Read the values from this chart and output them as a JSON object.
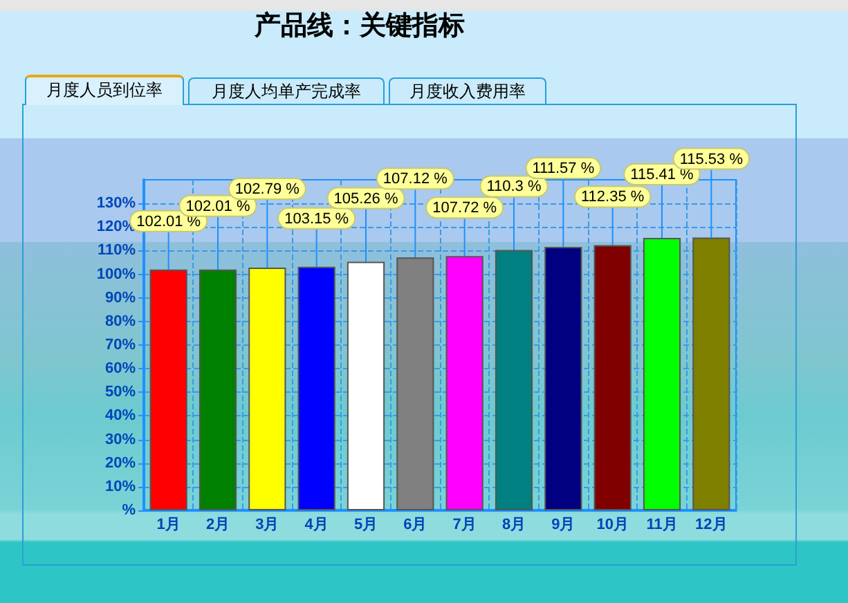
{
  "chart_data": {
    "type": "bar",
    "title": "产品线：关键指标",
    "annotations": [
      "月度人员到位率",
      "月度人均单产完成率",
      "月度收入费用率"
    ],
    "categories": [
      "1月",
      "2月",
      "3月",
      "4月",
      "5月",
      "6月",
      "7月",
      "8月",
      "9月",
      "10月",
      "11月",
      "12月"
    ],
    "values": [
      102.01,
      102.01,
      102.79,
      103.15,
      105.26,
      107.12,
      107.72,
      110.3,
      111.57,
      112.35,
      115.41,
      115.53
    ],
    "colors": [
      "#ff0000",
      "#008000",
      "#ffff00",
      "#0000ff",
      "#ffffff",
      "#808080",
      "#ff00ff",
      "#008080",
      "#000080",
      "#800000",
      "#00ff00",
      "#808000"
    ],
    "value_labels": [
      "102.01 %",
      "102.01 %",
      "102.79 %",
      "103.15 %",
      "105.26 %",
      "107.12 %",
      "107.72 %",
      "110.3 %",
      "111.57 %",
      "112.35 %",
      "115.41 %",
      "115.53 %"
    ],
    "ylim": [
      0,
      140
    ],
    "yticks": [
      {
        "value": 0,
        "label": "%"
      },
      {
        "value": 10,
        "label": "10%"
      },
      {
        "value": 20,
        "label": "20%"
      },
      {
        "value": 30,
        "label": "30%"
      },
      {
        "value": 40,
        "label": "40%"
      },
      {
        "value": 50,
        "label": "50%"
      },
      {
        "value": 60,
        "label": "60%"
      },
      {
        "value": 70,
        "label": "70%"
      },
      {
        "value": 80,
        "label": "80%"
      },
      {
        "value": 90,
        "label": "90%"
      },
      {
        "value": 100,
        "label": "100%"
      },
      {
        "value": 110,
        "label": "110%"
      },
      {
        "value": 120,
        "label": "120%"
      },
      {
        "value": 130,
        "label": "130%"
      }
    ],
    "grid": true
  }
}
